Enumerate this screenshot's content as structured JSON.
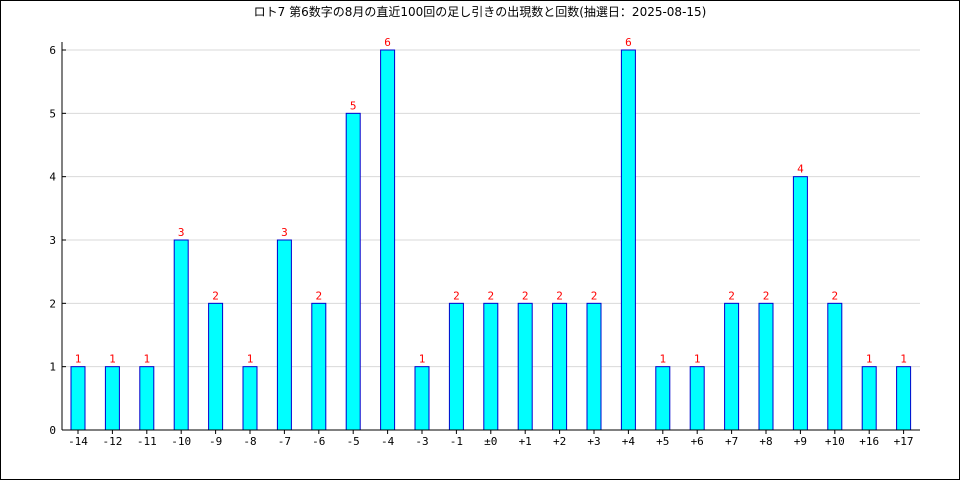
{
  "chart_data": {
    "type": "bar",
    "title": "ロト7 第6数字の8月の直近100回の足し引きの出現数と回数(抽選日：2025-08-15)",
    "categories": [
      "-14",
      "-12",
      "-11",
      "-10",
      "-9",
      "-8",
      "-7",
      "-6",
      "-5",
      "-4",
      "-3",
      "-1",
      "±0",
      "+1",
      "+2",
      "+3",
      "+4",
      "+5",
      "+6",
      "+7",
      "+8",
      "+9",
      "+10",
      "+16",
      "+17"
    ],
    "values": [
      1,
      1,
      1,
      3,
      2,
      1,
      3,
      2,
      5,
      6,
      1,
      2,
      2,
      2,
      2,
      2,
      6,
      1,
      1,
      2,
      2,
      4,
      2,
      1,
      1
    ],
    "xlabel": "",
    "ylabel": "",
    "ylim": [
      0,
      6
    ],
    "yticks": [
      0,
      1,
      2,
      3,
      4,
      5,
      6
    ],
    "grid": true,
    "data_labels": true,
    "bar_fill_color": "#00ffff",
    "bar_edge_color": "#0000cc",
    "data_label_color": "#ff0000",
    "grid_color": "#d9d9d9"
  }
}
